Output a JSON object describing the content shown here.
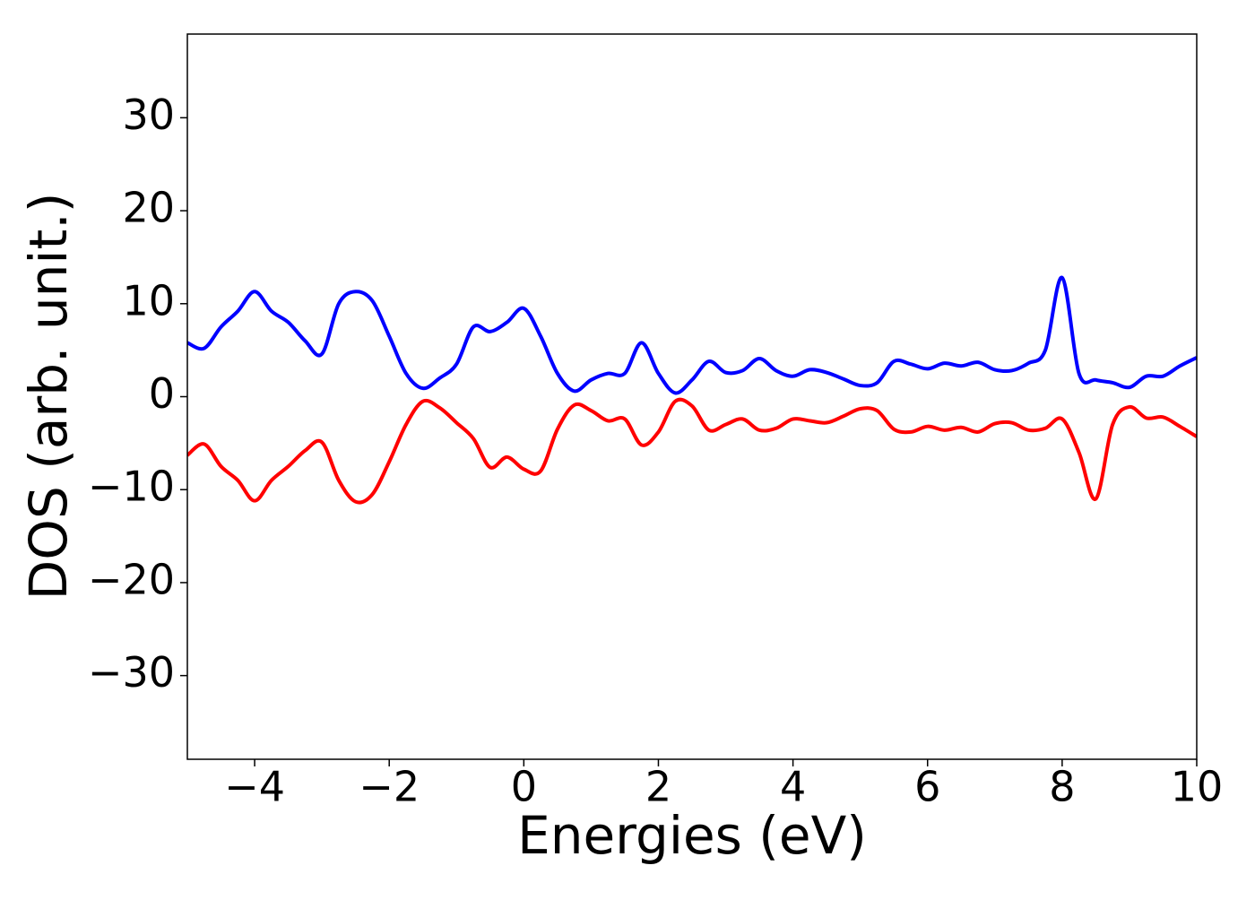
{
  "chart_data": {
    "type": "line",
    "x_label": "Energies (eV)",
    "y_label": "DOS (arb. unit.)",
    "x": [
      -5,
      -4.75,
      -4.5,
      -4.25,
      -4,
      -3.75,
      -3.5,
      -3.25,
      -3,
      -2.75,
      -2.5,
      -2.25,
      -2,
      -1.75,
      -1.5,
      -1.25,
      -1,
      -0.75,
      -0.5,
      -0.25,
      0,
      0.25,
      0.5,
      0.75,
      1,
      1.25,
      1.5,
      1.75,
      2,
      2.25,
      2.5,
      2.75,
      3,
      3.25,
      3.5,
      3.75,
      4,
      4.25,
      4.5,
      4.75,
      5,
      5.25,
      5.5,
      5.75,
      6,
      6.25,
      6.5,
      6.75,
      7,
      7.25,
      7.5,
      7.75,
      8,
      8.25,
      8.5,
      8.75,
      9,
      9.25,
      9.5,
      9.75,
      10
    ],
    "series": [
      {
        "color": "#0000ff",
        "values": [
          5.8,
          5.2,
          7.5,
          9.2,
          11.3,
          9.2,
          8,
          6,
          4.6,
          10,
          11.3,
          10.3,
          6.5,
          2.5,
          0.9,
          2,
          3.5,
          7.5,
          7,
          8,
          9.5,
          6.5,
          2.5,
          0.6,
          1.8,
          2.5,
          2.5,
          5.8,
          2.5,
          0.4,
          1.8,
          3.8,
          2.6,
          2.8,
          4.1,
          2.8,
          2.2,
          2.9,
          2.6,
          1.9,
          1.2,
          1.5,
          3.8,
          3.5,
          3,
          3.6,
          3.3,
          3.7,
          2.9,
          2.8,
          3.6,
          5,
          12.8,
          2.5,
          1.8,
          1.5,
          1,
          2.2,
          2.2,
          3.3,
          4.2
        ]
      },
      {
        "color": "#ff0000",
        "values": [
          -6.3,
          -5.1,
          -7.5,
          -9,
          -11.2,
          -9,
          -7.5,
          -5.8,
          -4.9,
          -9,
          -11.3,
          -10.5,
          -7,
          -3,
          -0.5,
          -1.2,
          -2.8,
          -4.5,
          -7.6,
          -6.5,
          -7.8,
          -8,
          -3.5,
          -0.9,
          -1.5,
          -2.6,
          -2.4,
          -5.2,
          -3.8,
          -0.5,
          -1,
          -3.6,
          -3,
          -2.4,
          -3.6,
          -3.4,
          -2.4,
          -2.6,
          -2.8,
          -2.1,
          -1.3,
          -1.5,
          -3.5,
          -3.8,
          -3.2,
          -3.6,
          -3.3,
          -3.8,
          -2.9,
          -2.8,
          -3.6,
          -3.4,
          -2.4,
          -6,
          -11,
          -3,
          -1.1,
          -2.3,
          -2.2,
          -3.2,
          -4.3
        ]
      }
    ],
    "xlim": [
      -5,
      10
    ],
    "xticks": [
      {
        "value": -4,
        "label": "−4"
      },
      {
        "value": -2,
        "label": "−2"
      },
      0,
      2,
      4,
      6,
      8,
      10
    ],
    "ylim": [
      -39,
      39
    ],
    "yticks": [
      {
        "value": -30,
        "label": "−30"
      },
      {
        "value": -20,
        "label": "−20"
      },
      {
        "value": -10,
        "label": "−10"
      },
      0,
      10,
      20,
      30
    ],
    "grid": false
  }
}
